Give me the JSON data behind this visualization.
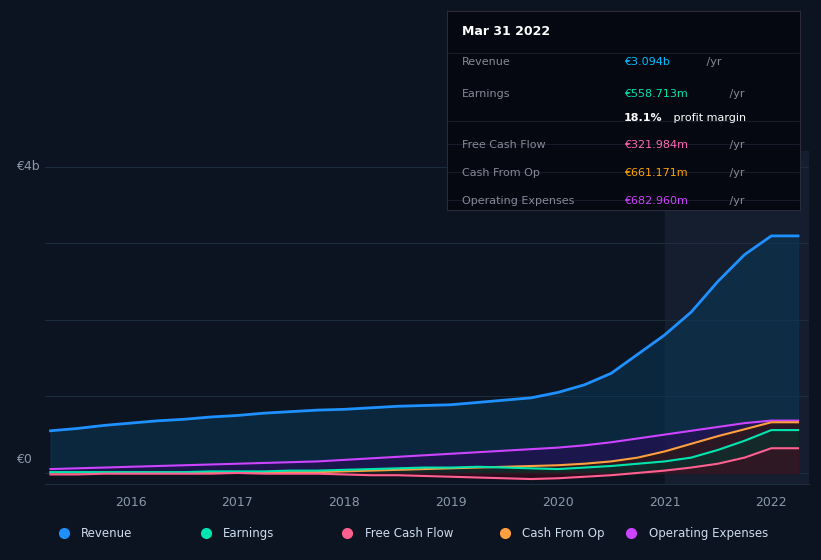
{
  "bg_color": "#0d1421",
  "grid_color": "#1e2d3d",
  "title_date": "Mar 31 2022",
  "info": {
    "Revenue": {
      "value": "€3.094b /yr",
      "color": "#00bfff"
    },
    "Earnings": {
      "value": "€558.713m /yr",
      "color": "#00e5b0"
    },
    "profit_margin": "18.1% profit margin",
    "Free Cash Flow": {
      "value": "€321.984m /yr",
      "color": "#ff69b4"
    },
    "Cash From Op": {
      "value": "€661.171m /yr",
      "color": "#ffa500"
    },
    "Operating Expenses": {
      "value": "€682.960m /yr",
      "color": "#cc44ff"
    }
  },
  "years": [
    2015.25,
    2015.5,
    2015.75,
    2016.0,
    2016.25,
    2016.5,
    2016.75,
    2017.0,
    2017.25,
    2017.5,
    2017.75,
    2018.0,
    2018.25,
    2018.5,
    2018.75,
    2019.0,
    2019.25,
    2019.5,
    2019.75,
    2020.0,
    2020.25,
    2020.5,
    2020.75,
    2021.0,
    2021.25,
    2021.5,
    2021.75,
    2022.0,
    2022.25
  ],
  "revenue": [
    0.55,
    0.58,
    0.62,
    0.65,
    0.68,
    0.7,
    0.73,
    0.75,
    0.78,
    0.8,
    0.82,
    0.83,
    0.85,
    0.87,
    0.88,
    0.89,
    0.92,
    0.95,
    0.98,
    1.05,
    1.15,
    1.3,
    1.55,
    1.8,
    2.1,
    2.5,
    2.85,
    3.094,
    3.094
  ],
  "earnings": [
    0.01,
    0.01,
    0.01,
    0.01,
    0.01,
    0.01,
    0.02,
    0.02,
    0.02,
    0.03,
    0.03,
    0.04,
    0.05,
    0.06,
    0.07,
    0.07,
    0.08,
    0.07,
    0.06,
    0.05,
    0.07,
    0.09,
    0.12,
    0.15,
    0.2,
    0.3,
    0.42,
    0.559,
    0.559
  ],
  "free_cash_flow": [
    -0.02,
    -0.02,
    -0.01,
    -0.01,
    -0.01,
    -0.01,
    -0.01,
    0.0,
    -0.01,
    -0.01,
    -0.01,
    -0.02,
    -0.03,
    -0.03,
    -0.04,
    -0.05,
    -0.06,
    -0.07,
    -0.08,
    -0.07,
    -0.05,
    -0.03,
    0.0,
    0.03,
    0.07,
    0.12,
    0.2,
    0.322,
    0.322
  ],
  "cash_from_op": [
    0.005,
    0.005,
    0.005,
    0.005,
    0.005,
    0.005,
    0.01,
    0.01,
    0.01,
    0.01,
    0.01,
    0.02,
    0.03,
    0.04,
    0.05,
    0.06,
    0.07,
    0.08,
    0.09,
    0.1,
    0.12,
    0.15,
    0.2,
    0.28,
    0.38,
    0.48,
    0.57,
    0.661,
    0.661
  ],
  "op_expenses": [
    0.05,
    0.06,
    0.07,
    0.08,
    0.09,
    0.1,
    0.11,
    0.12,
    0.13,
    0.14,
    0.15,
    0.17,
    0.19,
    0.21,
    0.23,
    0.25,
    0.27,
    0.29,
    0.31,
    0.33,
    0.36,
    0.4,
    0.45,
    0.5,
    0.55,
    0.6,
    0.65,
    0.683,
    0.683
  ],
  "revenue_color": "#1e90ff",
  "revenue_fill": "#0a3a5c",
  "earnings_color": "#00e5b0",
  "earnings_fill": "#003830",
  "fcf_color": "#ff6090",
  "fcf_fill": "#4a0820",
  "cashop_color": "#ffa040",
  "cashop_fill": "#3a1800",
  "opex_color": "#cc44ff",
  "opex_fill": "#2a0a5a",
  "highlight_x_start": 2021.0,
  "highlight_x_end": 2022.35,
  "xlim": [
    2015.2,
    2022.35
  ],
  "ylim": [
    -0.15,
    4.2
  ],
  "ytick_labels": [
    "€0",
    "€4b"
  ],
  "xticks": [
    2016,
    2017,
    2018,
    2019,
    2020,
    2021,
    2022
  ],
  "legend_items": [
    {
      "label": "Revenue",
      "color": "#1e90ff"
    },
    {
      "label": "Earnings",
      "color": "#00e5b0"
    },
    {
      "label": "Free Cash Flow",
      "color": "#ff6090"
    },
    {
      "label": "Cash From Op",
      "color": "#ffa040"
    },
    {
      "label": "Operating Expenses",
      "color": "#cc44ff"
    }
  ]
}
